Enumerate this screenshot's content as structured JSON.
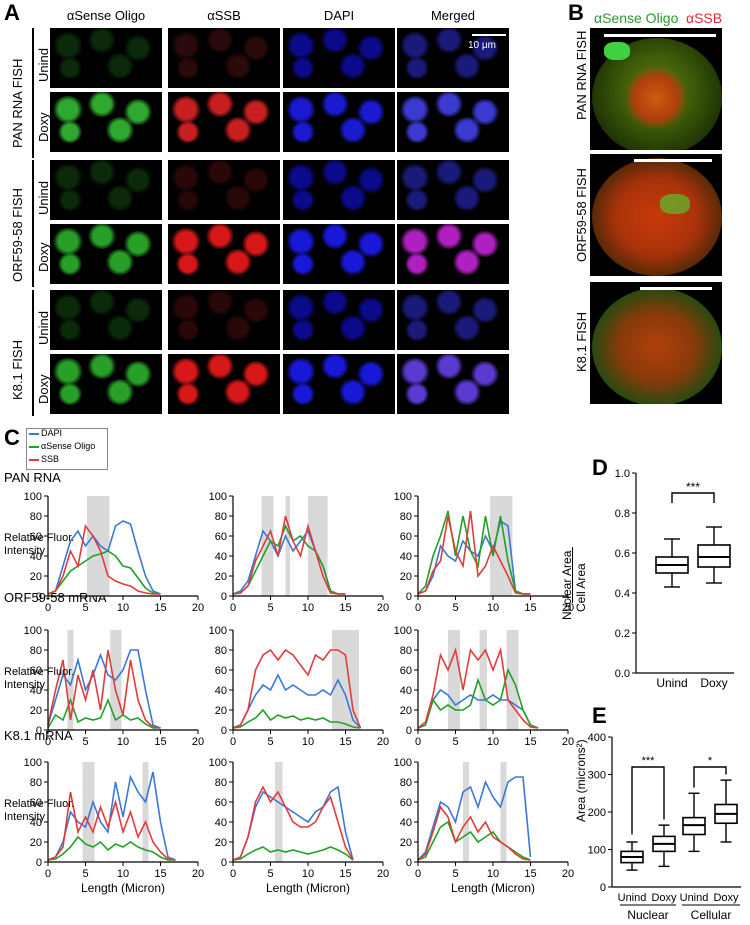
{
  "panelA": {
    "label": "A",
    "columns": [
      "αSense Oligo",
      "αSSB",
      "DAPI",
      "Merged"
    ],
    "scalebar": "10 μm",
    "groups": [
      {
        "label": "PAN RNA FISH",
        "rows": [
          "Unind",
          "Doxy"
        ]
      },
      {
        "label": "ORF59-58 FISH",
        "rows": [
          "Unind",
          "Doxy"
        ]
      },
      {
        "label": "K8.1 FISH",
        "rows": [
          "Unind",
          "Doxy"
        ]
      }
    ]
  },
  "panelB": {
    "label": "B",
    "header_green": "αSense Oligo",
    "header_red": "αSSB",
    "rows": [
      "PAN RNA FISH",
      "ORF59-58 FISH",
      "K8.1 FISH"
    ]
  },
  "panelC": {
    "label": "C",
    "legend": [
      {
        "name": "DAPI",
        "color": "#3a78d8"
      },
      {
        "name": "αSense Oligo",
        "color": "#22a024"
      },
      {
        "name": "SSB",
        "color": "#e23b3b"
      }
    ],
    "row_titles": [
      "PAN RNA",
      "ORF59-58 mRNA",
      "K8.1 mRNA"
    ],
    "ylabel": "Relative Fluor. Intensity",
    "xlabel": "Length (Micron)"
  },
  "panelD": {
    "label": "D",
    "ylabel_top": "Nuclear Area",
    "ylabel_bottom": "Cell Area",
    "significance": "***"
  },
  "panelE": {
    "label": "E",
    "ylabel": "Area (microns²)",
    "group_nuclear": "Nuclear",
    "group_cellular": "Cellular",
    "sig1": "***",
    "sig2": "*"
  },
  "chart_data": [
    {
      "type": "line",
      "row": "PAN RNA",
      "x": [
        0,
        1,
        2,
        3,
        4,
        5,
        6,
        7,
        8,
        9,
        10,
        11,
        12,
        13,
        14,
        15
      ],
      "series": [
        {
          "name": "DAPI",
          "values": [
            2,
            5,
            30,
            55,
            65,
            50,
            60,
            50,
            45,
            70,
            75,
            72,
            45,
            20,
            5,
            2
          ]
        },
        {
          "name": "αSense Oligo",
          "values": [
            2,
            5,
            15,
            25,
            30,
            35,
            40,
            42,
            45,
            40,
            30,
            28,
            18,
            8,
            3,
            2
          ]
        },
        {
          "name": "SSB",
          "values": [
            2,
            5,
            20,
            45,
            30,
            70,
            60,
            45,
            20,
            15,
            12,
            10,
            5,
            3,
            2,
            2
          ]
        }
      ],
      "shaded": [
        [
          5.2,
          8.2
        ]
      ],
      "xlim": [
        0,
        20
      ],
      "ylim": [
        0,
        100
      ]
    },
    {
      "type": "line",
      "row": "PAN RNA",
      "x": [
        0,
        1,
        2,
        3,
        4,
        5,
        6,
        7,
        8,
        9,
        10,
        11,
        12,
        13,
        14,
        15
      ],
      "series": [
        {
          "name": "DAPI",
          "values": [
            2,
            5,
            15,
            40,
            65,
            55,
            40,
            60,
            45,
            55,
            65,
            45,
            30,
            5,
            2,
            2
          ]
        },
        {
          "name": "αSense Oligo",
          "values": [
            2,
            3,
            10,
            25,
            40,
            55,
            50,
            70,
            55,
            60,
            50,
            45,
            30,
            5,
            2,
            2
          ]
        },
        {
          "name": "SSB",
          "values": [
            2,
            3,
            10,
            35,
            50,
            65,
            40,
            80,
            55,
            40,
            70,
            45,
            20,
            3,
            2,
            2
          ]
        }
      ],
      "shaded": [
        [
          3.8,
          5.4
        ],
        [
          7,
          7.6
        ],
        [
          10,
          12.6
        ]
      ],
      "xlim": [
        0,
        20
      ],
      "ylim": [
        0,
        100
      ]
    },
    {
      "type": "line",
      "row": "PAN RNA",
      "x": [
        0,
        1,
        2,
        3,
        4,
        5,
        6,
        7,
        8,
        9,
        10,
        11,
        12,
        13,
        14,
        15
      ],
      "series": [
        {
          "name": "DAPI",
          "values": [
            2,
            5,
            20,
            50,
            40,
            35,
            55,
            45,
            40,
            60,
            45,
            75,
            70,
            5,
            2,
            2
          ]
        },
        {
          "name": "αSense Oligo",
          "values": [
            2,
            10,
            40,
            60,
            85,
            40,
            80,
            45,
            30,
            80,
            40,
            80,
            35,
            5,
            2,
            2
          ]
        },
        {
          "name": "SSB",
          "values": [
            2,
            5,
            25,
            35,
            80,
            45,
            30,
            85,
            20,
            30,
            50,
            35,
            20,
            3,
            2,
            2
          ]
        }
      ],
      "shaded": [
        [
          9.6,
          12.6
        ]
      ],
      "xlim": [
        0,
        20
      ],
      "ylim": [
        0,
        100
      ]
    },
    {
      "type": "line",
      "row": "ORF59-58 mRNA",
      "x": [
        0,
        1,
        2,
        3,
        4,
        5,
        6,
        7,
        8,
        9,
        10,
        11,
        12,
        13,
        14,
        15
      ],
      "series": [
        {
          "name": "DAPI",
          "values": [
            5,
            30,
            55,
            45,
            70,
            40,
            55,
            75,
            55,
            50,
            60,
            80,
            80,
            40,
            5,
            2
          ]
        },
        {
          "name": "αSense Oligo",
          "values": [
            2,
            15,
            10,
            30,
            8,
            12,
            10,
            12,
            30,
            10,
            15,
            10,
            12,
            6,
            2,
            2
          ]
        },
        {
          "name": "SSB",
          "values": [
            5,
            40,
            70,
            10,
            55,
            30,
            60,
            20,
            80,
            40,
            15,
            70,
            30,
            10,
            3,
            2
          ]
        }
      ],
      "shaded": [
        [
          2.6,
          3.4
        ],
        [
          8.3,
          9.8
        ]
      ],
      "xlim": [
        0,
        20
      ],
      "ylim": [
        0,
        100
      ]
    },
    {
      "type": "line",
      "row": "ORF59-58 mRNA",
      "x": [
        0,
        1,
        2,
        3,
        4,
        5,
        6,
        7,
        8,
        9,
        10,
        11,
        12,
        13,
        14,
        15,
        16,
        17
      ],
      "series": [
        {
          "name": "DAPI",
          "values": [
            2,
            5,
            20,
            35,
            45,
            40,
            55,
            40,
            45,
            40,
            35,
            35,
            40,
            35,
            50,
            35,
            10,
            2
          ]
        },
        {
          "name": "αSense Oligo",
          "values": [
            2,
            3,
            8,
            12,
            20,
            10,
            15,
            12,
            14,
            10,
            12,
            10,
            12,
            8,
            8,
            6,
            3,
            2
          ]
        },
        {
          "name": "SSB",
          "values": [
            2,
            5,
            20,
            60,
            75,
            80,
            70,
            80,
            75,
            65,
            55,
            75,
            70,
            80,
            80,
            75,
            20,
            2
          ]
        }
      ],
      "shaded": [
        [
          13.2,
          16.8
        ]
      ],
      "xlim": [
        0,
        20
      ],
      "ylim": [
        0,
        100
      ]
    },
    {
      "type": "line",
      "row": "ORF59-58 mRNA",
      "x": [
        0,
        1,
        2,
        3,
        4,
        5,
        6,
        7,
        8,
        9,
        10,
        11,
        12,
        13,
        14,
        15,
        16
      ],
      "series": [
        {
          "name": "DAPI",
          "values": [
            2,
            5,
            30,
            40,
            35,
            25,
            30,
            35,
            30,
            30,
            35,
            30,
            30,
            25,
            20,
            5,
            2
          ]
        },
        {
          "name": "αSense Oligo",
          "values": [
            2,
            5,
            30,
            20,
            25,
            20,
            20,
            25,
            50,
            30,
            25,
            30,
            60,
            45,
            20,
            5,
            2
          ]
        },
        {
          "name": "SSB",
          "values": [
            2,
            8,
            35,
            75,
            60,
            80,
            40,
            80,
            70,
            80,
            60,
            80,
            30,
            20,
            10,
            3,
            2
          ]
        }
      ],
      "shaded": [
        [
          4,
          5.6
        ],
        [
          8.2,
          9.2
        ],
        [
          11.8,
          13.4
        ]
      ],
      "xlim": [
        0,
        20
      ],
      "ylim": [
        0,
        100
      ]
    },
    {
      "type": "line",
      "row": "K8.1 mRNA",
      "x": [
        0,
        1,
        2,
        3,
        4,
        5,
        6,
        7,
        8,
        9,
        10,
        11,
        12,
        13,
        14,
        15,
        16,
        17
      ],
      "series": [
        {
          "name": "DAPI",
          "values": [
            2,
            5,
            20,
            50,
            40,
            35,
            60,
            40,
            30,
            80,
            45,
            85,
            70,
            60,
            90,
            40,
            5,
            2
          ]
        },
        {
          "name": "αSense Oligo",
          "values": [
            2,
            3,
            8,
            15,
            25,
            18,
            15,
            20,
            12,
            18,
            15,
            20,
            15,
            12,
            10,
            5,
            2,
            2
          ]
        },
        {
          "name": "SSB",
          "values": [
            2,
            5,
            15,
            70,
            30,
            45,
            30,
            55,
            35,
            60,
            30,
            50,
            25,
            40,
            20,
            10,
            3,
            2
          ]
        }
      ],
      "shaded": [
        [
          4.6,
          6.2
        ],
        [
          12.6,
          13.4
        ]
      ],
      "xlim": [
        0,
        20
      ],
      "ylim": [
        0,
        100
      ]
    },
    {
      "type": "line",
      "row": "K8.1 mRNA",
      "x": [
        0,
        1,
        2,
        3,
        4,
        5,
        6,
        7,
        8,
        9,
        10,
        11,
        12,
        13,
        14,
        15,
        16
      ],
      "series": [
        {
          "name": "DAPI",
          "values": [
            2,
            5,
            25,
            55,
            70,
            65,
            60,
            55,
            50,
            45,
            40,
            50,
            55,
            70,
            75,
            30,
            2
          ]
        },
        {
          "name": "αSense Oligo",
          "values": [
            2,
            3,
            8,
            12,
            15,
            10,
            12,
            10,
            12,
            10,
            8,
            10,
            12,
            15,
            12,
            8,
            2
          ]
        },
        {
          "name": "SSB",
          "values": [
            2,
            5,
            25,
            60,
            75,
            60,
            70,
            55,
            40,
            35,
            35,
            40,
            55,
            65,
            40,
            15,
            2
          ]
        }
      ],
      "shaded": [
        [
          5.6,
          6.6
        ]
      ],
      "xlim": [
        0,
        20
      ],
      "ylim": [
        0,
        100
      ]
    },
    {
      "type": "line",
      "row": "K8.1 mRNA",
      "x": [
        0,
        1,
        2,
        3,
        4,
        5,
        6,
        7,
        8,
        9,
        10,
        11,
        12,
        13,
        14,
        15
      ],
      "series": [
        {
          "name": "DAPI",
          "values": [
            2,
            10,
            35,
            60,
            55,
            40,
            70,
            75,
            55,
            80,
            65,
            55,
            80,
            85,
            85,
            5
          ]
        },
        {
          "name": "αSense Oligo",
          "values": [
            2,
            5,
            20,
            35,
            40,
            20,
            25,
            30,
            20,
            25,
            30,
            20,
            15,
            10,
            5,
            2
          ]
        },
        {
          "name": "SSB",
          "values": [
            2,
            8,
            30,
            55,
            45,
            20,
            35,
            45,
            30,
            40,
            25,
            20,
            15,
            8,
            3,
            2
          ]
        }
      ],
      "shaded": [
        [
          6,
          6.8
        ],
        [
          11,
          11.8
        ]
      ],
      "xlim": [
        0,
        20
      ],
      "ylim": [
        0,
        100
      ]
    },
    {
      "type": "box",
      "panel": "D",
      "categories": [
        "Unind",
        "Doxy"
      ],
      "boxes": [
        {
          "whisker_low": 0.43,
          "q1": 0.5,
          "median": 0.54,
          "q3": 0.58,
          "whisker_high": 0.67
        },
        {
          "whisker_low": 0.45,
          "q1": 0.53,
          "median": 0.58,
          "q3": 0.64,
          "whisker_high": 0.73
        }
      ],
      "ylim": [
        0,
        1.0
      ],
      "yticks": [
        0.0,
        0.2,
        0.4,
        0.6,
        0.8,
        1.0
      ]
    },
    {
      "type": "box",
      "panel": "E",
      "categories": [
        "Unind",
        "Doxy",
        "Unind",
        "Doxy"
      ],
      "boxes": [
        {
          "whisker_low": 45,
          "q1": 65,
          "median": 80,
          "q3": 95,
          "whisker_high": 120
        },
        {
          "whisker_low": 55,
          "q1": 95,
          "median": 115,
          "q3": 135,
          "whisker_high": 165
        },
        {
          "whisker_low": 95,
          "q1": 140,
          "median": 165,
          "q3": 185,
          "whisker_high": 250
        },
        {
          "whisker_low": 120,
          "q1": 170,
          "median": 195,
          "q3": 220,
          "whisker_high": 285
        }
      ],
      "ylim": [
        0,
        400
      ],
      "yticks": [
        0,
        100,
        200,
        300,
        400
      ]
    }
  ]
}
